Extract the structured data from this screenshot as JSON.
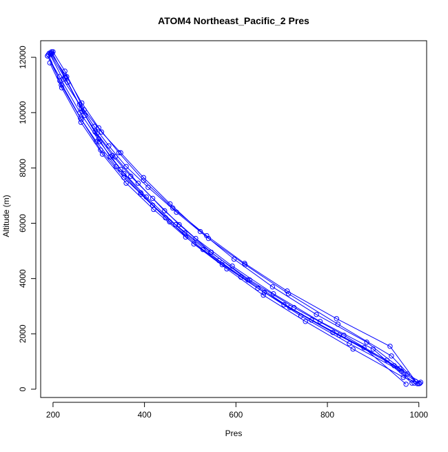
{
  "chart_data": {
    "type": "line",
    "title": "ATOM4 Northeast_Pacific_2 Pres",
    "xlabel": "Pres",
    "ylabel": "Altitude (m)",
    "xlim": [
      173,
      1017
    ],
    "ylim": [
      -300,
      12600
    ],
    "x_ticks": [
      200,
      400,
      600,
      800,
      1000
    ],
    "y_ticks": [
      0,
      2000,
      4000,
      6000,
      8000,
      10000,
      12000
    ],
    "x_tick_labels": [
      "200",
      "400",
      "600",
      "800",
      "1000"
    ],
    "y_tick_labels": [
      "0",
      "2000",
      "4000",
      "6000",
      "8000",
      "10000",
      "12000"
    ],
    "grid": false,
    "legend": "none",
    "marker": "open-circle",
    "series_color": "#0000ff",
    "series": [
      {
        "x": [
          188,
          215,
          262,
          304,
          355,
          418,
          488,
          563,
          648,
          742,
          848,
          962,
          1000
        ],
        "y": [
          12050,
          11150,
          9750,
          8650,
          7650,
          6650,
          5650,
          4650,
          3650,
          2650,
          1650,
          650,
          200
        ]
      },
      {
        "x": [
          195,
          230,
          263,
          300,
          344,
          398,
          462,
          536,
          619,
          712,
          820,
          937,
          997
        ],
        "y": [
          12150,
          11300,
          10350,
          9450,
          8550,
          7550,
          6550,
          5550,
          4550,
          3550,
          2550,
          1550,
          200
        ]
      },
      {
        "x": [
          190,
          218,
          260,
          295,
          338,
          392,
          455,
          528,
          611,
          705,
          812,
          930,
          990
        ],
        "y": [
          12100,
          11000,
          9800,
          8950,
          8050,
          7050,
          6050,
          5050,
          4050,
          3050,
          2050,
          1050,
          220
        ]
      },
      {
        "x": [
          192,
          222,
          258,
          290,
          322,
          360,
          408,
          470,
          540,
          620,
          715,
          823,
          940,
          993
        ],
        "y": [
          12150,
          11200,
          10300,
          9500,
          8800,
          8050,
          7300,
          6400,
          5450,
          4500,
          3450,
          2350,
          1200,
          280
        ]
      },
      {
        "x": [
          197,
          232,
          270,
          300,
          325,
          355,
          392,
          446,
          508,
          580,
          660,
          752,
          856,
          966,
          1002
        ],
        "y": [
          12200,
          11100,
          9900,
          9050,
          8400,
          7800,
          7100,
          6200,
          5250,
          4350,
          3400,
          2450,
          1450,
          430,
          210
        ]
      },
      {
        "x": [
          195,
          226,
          262,
          292,
          330,
          370,
          418,
          476,
          546,
          626,
          718,
          826,
          946,
          1004
        ],
        "y": [
          12100,
          11250,
          10150,
          9300,
          8450,
          7700,
          6900,
          5950,
          4950,
          3950,
          2950,
          1950,
          850,
          250
        ]
      },
      {
        "x": [
          188,
          214,
          259,
          302,
          348,
          404,
          468,
          545,
          630,
          727,
          836,
          958
        ],
        "y": [
          12050,
          11300,
          10000,
          8950,
          7950,
          6950,
          5950,
          4950,
          3950,
          2950,
          1950,
          750
        ]
      },
      {
        "x": [
          193,
          219,
          261,
          308,
          360,
          420,
          490,
          570,
          662,
          765,
          880,
          972
        ],
        "y": [
          11800,
          10900,
          9650,
          8500,
          7450,
          6500,
          5500,
          4500,
          3500,
          2500,
          1500,
          180
        ]
      },
      {
        "x": [
          200,
          226,
          268,
          306,
          348,
          398,
          456,
          522,
          596,
          680,
          776,
          886,
          975
        ],
        "y": [
          12200,
          11500,
          10100,
          9300,
          8550,
          7650,
          6700,
          5700,
          4700,
          3700,
          2700,
          1700,
          550
        ]
      },
      {
        "x": [
          198,
          226,
          264,
          296,
          336,
          386,
          444,
          512,
          592,
          682,
          784,
          900,
          985
        ],
        "y": [
          12150,
          11300,
          10050,
          9250,
          8400,
          7450,
          6450,
          5450,
          4450,
          3450,
          2450,
          1450,
          220
        ]
      }
    ]
  }
}
